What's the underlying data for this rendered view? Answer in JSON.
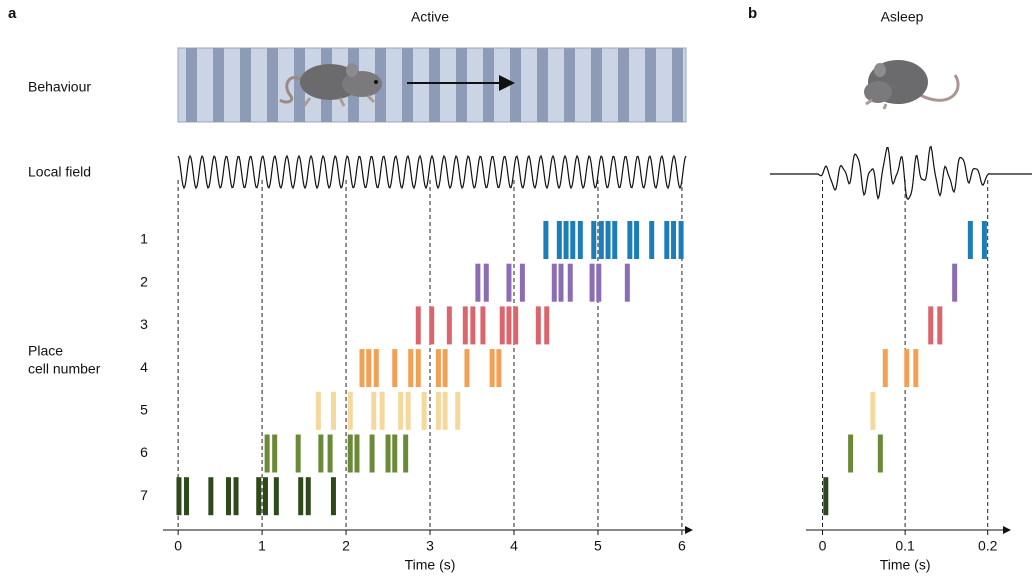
{
  "panel_labels": [
    "a",
    "b"
  ],
  "row_labels": [
    "Behaviour",
    "Local field"
  ],
  "chart_data": [
    {
      "type": "raster",
      "title": "Active",
      "ylabel": [
        "Place",
        "cell number"
      ],
      "xlabel": "Time (s)",
      "xlim": [
        -0.18,
        6.12
      ],
      "xticks": [
        0,
        1,
        2,
        3,
        4,
        5,
        6
      ],
      "series": [
        {
          "name": "1",
          "color": "#1c7db8",
          "values": [
            4.38,
            4.54,
            4.62,
            4.7,
            4.79,
            4.95,
            5.04,
            5.12,
            5.2,
            5.38,
            5.46,
            5.64,
            5.82,
            5.9,
            5.99
          ]
        },
        {
          "name": "2",
          "color": "#8b6db3",
          "values": [
            3.57,
            3.67,
            3.94,
            4.1,
            4.48,
            4.56,
            4.67,
            4.93,
            5.01,
            5.35
          ]
        },
        {
          "name": "3",
          "color": "#db656d",
          "values": [
            2.86,
            3.02,
            3.23,
            3.42,
            3.51,
            3.63,
            3.86,
            3.94,
            4.02,
            4.29,
            4.39
          ]
        },
        {
          "name": "4",
          "color": "#f2a154",
          "values": [
            2.19,
            2.27,
            2.36,
            2.58,
            2.77,
            2.86,
            3.1,
            3.18,
            3.44,
            3.74,
            3.82
          ]
        },
        {
          "name": "5",
          "color": "#f5d99c",
          "values": [
            1.67,
            1.85,
            2.05,
            2.33,
            2.43,
            2.65,
            2.74,
            2.93,
            3.1,
            3.18,
            3.33
          ]
        },
        {
          "name": "6",
          "color": "#6a8a38",
          "values": [
            1.06,
            1.15,
            1.43,
            1.7,
            1.81,
            2.05,
            2.13,
            2.31,
            2.5,
            2.58,
            2.71
          ]
        },
        {
          "name": "7",
          "color": "#2e4a1d",
          "values": [
            0.01,
            0.1,
            0.39,
            0.6,
            0.69,
            0.96,
            1.04,
            1.17,
            1.46,
            1.55,
            1.85
          ]
        }
      ]
    },
    {
      "type": "raster",
      "title": "Asleep",
      "xlabel": "Time (s)",
      "xlim": [
        -0.02,
        0.227
      ],
      "xticks": [
        0,
        0.1,
        0.2
      ],
      "series": [
        {
          "color": "#1c7db8",
          "values": [
            0.179,
            0.196
          ]
        },
        {
          "color": "#8b6db3",
          "values": [
            0.16
          ]
        },
        {
          "color": "#db656d",
          "values": [
            0.131,
            0.142
          ]
        },
        {
          "color": "#f2a154",
          "values": [
            0.076,
            0.102,
            0.113
          ]
        },
        {
          "color": "#f5d99c",
          "values": [
            0.061
          ]
        },
        {
          "color": "#6a8a38",
          "values": [
            0.034,
            0.07
          ]
        },
        {
          "color": "#2e4a1d",
          "values": [
            0.004
          ]
        }
      ]
    }
  ]
}
